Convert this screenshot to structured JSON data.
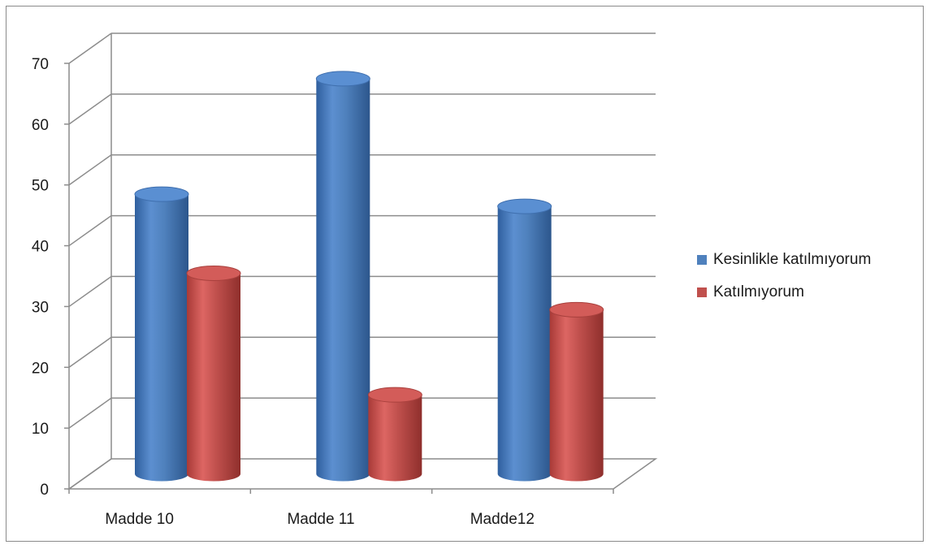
{
  "chart_data": {
    "type": "bar",
    "title": "",
    "xlabel": "",
    "ylabel": "",
    "ylim": [
      0,
      70
    ],
    "yticks": [
      0,
      10,
      20,
      30,
      40,
      50,
      60,
      70
    ],
    "categories": [
      "Madde 10",
      "Madde 11",
      "Madde12"
    ],
    "series": [
      {
        "name": "Kesinlikle katılmıyorum",
        "values": [
          46,
          65,
          44
        ],
        "color": "#4f81bd"
      },
      {
        "name": "Katılmıyorum",
        "values": [
          33,
          13,
          27
        ],
        "color": "#c0504d"
      }
    ],
    "grid": true,
    "legend_position": "right",
    "style": "3d-cylinder"
  }
}
